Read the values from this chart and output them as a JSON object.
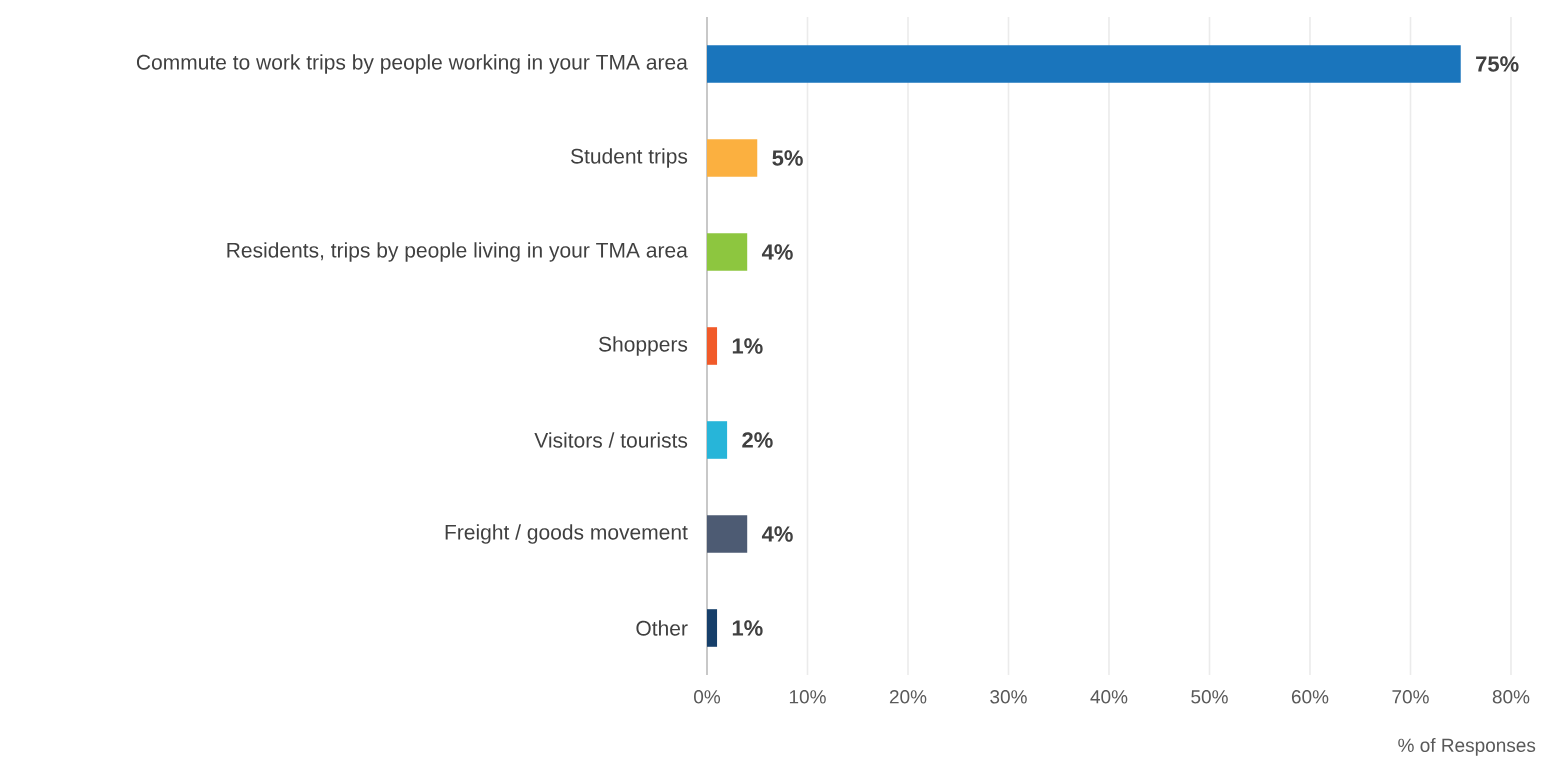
{
  "chart_data": {
    "type": "bar",
    "orientation": "horizontal",
    "xlabel": "% of Responses",
    "categories": [
      "Commute to work trips by people working in your TMA area",
      "Student trips",
      "Residents, trips by people living in your TMA area",
      "Shoppers",
      "Visitors / tourists",
      "Freight / goods movement",
      "Other"
    ],
    "values": [
      75,
      5,
      4,
      1,
      2,
      4,
      1
    ],
    "value_labels": [
      "75%",
      "5%",
      "4%",
      "1%",
      "2%",
      "4%",
      "1%"
    ],
    "colors": [
      "#1a75bc",
      "#fbb040",
      "#8dc63f",
      "#f15a29",
      "#27b5d9",
      "#4d5b73",
      "#163f6a"
    ],
    "xlim": [
      0,
      80
    ],
    "xticks": [
      {
        "value": 0,
        "label": "0%"
      },
      {
        "value": 10,
        "label": "10%"
      },
      {
        "value": 20,
        "label": "20%"
      },
      {
        "value": 30,
        "label": "30%"
      },
      {
        "value": 40,
        "label": "40%"
      },
      {
        "value": 50,
        "label": "50%"
      },
      {
        "value": 60,
        "label": "60%"
      },
      {
        "value": 70,
        "label": "70%"
      },
      {
        "value": 80,
        "label": "80%"
      }
    ],
    "grid": "x"
  }
}
